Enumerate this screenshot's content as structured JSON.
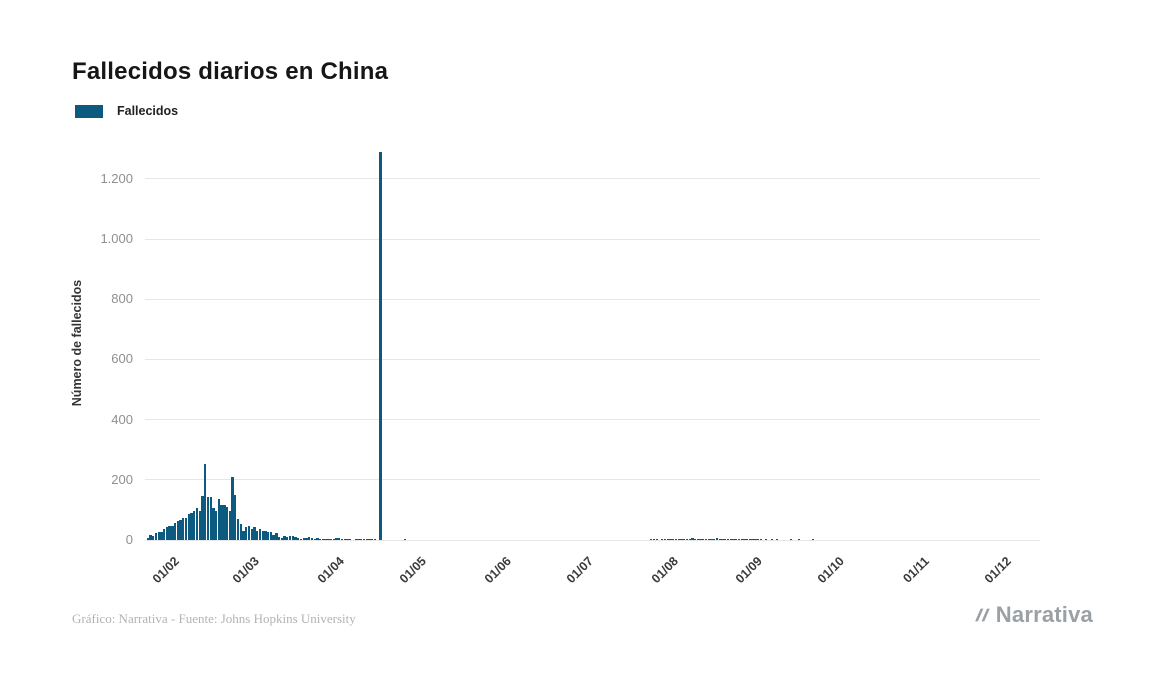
{
  "title": "Fallecidos diarios en China",
  "legend": {
    "label": "Fallecidos",
    "color": "#0d5a80"
  },
  "footer": {
    "credit": "Gráfico: Narrativa - Fuente: Johns Hopkins University"
  },
  "logo": {
    "text": "Narrativa"
  },
  "chart_data": {
    "type": "bar",
    "title": "Fallecidos diarios en China",
    "series_name": "Fallecidos",
    "xlabel": "",
    "ylabel": "Número de fallecidos",
    "bar_color": "#0d5a80",
    "grid": true,
    "legend_position": "top-left",
    "x_start": "2020-01-22",
    "x_end": "2020-12-14",
    "ylim": [
      0,
      1313
    ],
    "yticks": [
      [
        0,
        "0"
      ],
      [
        200,
        "200"
      ],
      [
        400,
        "400"
      ],
      [
        600,
        "600"
      ],
      [
        800,
        "800"
      ],
      [
        1000,
        "1.000"
      ],
      [
        1200,
        "1.200"
      ]
    ],
    "xticks": [
      [
        "2020-02-01",
        "01/02"
      ],
      [
        "2020-03-01",
        "01/03"
      ],
      [
        "2020-04-01",
        "01/04"
      ],
      [
        "2020-05-01",
        "01/05"
      ],
      [
        "2020-06-01",
        "01/06"
      ],
      [
        "2020-07-01",
        "01/07"
      ],
      [
        "2020-08-01",
        "01/08"
      ],
      [
        "2020-09-01",
        "01/09"
      ],
      [
        "2020-10-01",
        "01/10"
      ],
      [
        "2020-11-01",
        "01/11"
      ],
      [
        "2020-12-01",
        "01/12"
      ]
    ],
    "points": [
      [
        "2020-01-23",
        8
      ],
      [
        "2020-01-24",
        16
      ],
      [
        "2020-01-25",
        15
      ],
      [
        "2020-01-26",
        24
      ],
      [
        "2020-01-27",
        26
      ],
      [
        "2020-01-28",
        26
      ],
      [
        "2020-01-29",
        38
      ],
      [
        "2020-01-30",
        43
      ],
      [
        "2020-01-31",
        46
      ],
      [
        "2020-02-01",
        45
      ],
      [
        "2020-02-02",
        58
      ],
      [
        "2020-02-03",
        64
      ],
      [
        "2020-02-04",
        66
      ],
      [
        "2020-02-05",
        73
      ],
      [
        "2020-02-06",
        73
      ],
      [
        "2020-02-07",
        86
      ],
      [
        "2020-02-08",
        89
      ],
      [
        "2020-02-09",
        97
      ],
      [
        "2020-02-10",
        108
      ],
      [
        "2020-02-11",
        97
      ],
      [
        "2020-02-12",
        146
      ],
      [
        "2020-02-13",
        254
      ],
      [
        "2020-02-14",
        143
      ],
      [
        "2020-02-15",
        142
      ],
      [
        "2020-02-16",
        105
      ],
      [
        "2020-02-17",
        98
      ],
      [
        "2020-02-18",
        136
      ],
      [
        "2020-02-19",
        115
      ],
      [
        "2020-02-20",
        118
      ],
      [
        "2020-02-21",
        109
      ],
      [
        "2020-02-22",
        97
      ],
      [
        "2020-02-23",
        210
      ],
      [
        "2020-02-24",
        150
      ],
      [
        "2020-02-25",
        71
      ],
      [
        "2020-02-26",
        52
      ],
      [
        "2020-02-27",
        29
      ],
      [
        "2020-02-28",
        44
      ],
      [
        "2020-02-29",
        47
      ],
      [
        "2020-03-01",
        35
      ],
      [
        "2020-03-02",
        42
      ],
      [
        "2020-03-03",
        31
      ],
      [
        "2020-03-04",
        38
      ],
      [
        "2020-03-05",
        31
      ],
      [
        "2020-03-06",
        30
      ],
      [
        "2020-03-07",
        28
      ],
      [
        "2020-03-08",
        27
      ],
      [
        "2020-03-09",
        17
      ],
      [
        "2020-03-10",
        22
      ],
      [
        "2020-03-11",
        11
      ],
      [
        "2020-03-12",
        7
      ],
      [
        "2020-03-13",
        13
      ],
      [
        "2020-03-14",
        11
      ],
      [
        "2020-03-15",
        13
      ],
      [
        "2020-03-16",
        12
      ],
      [
        "2020-03-17",
        11
      ],
      [
        "2020-03-18",
        8
      ],
      [
        "2020-03-19",
        3
      ],
      [
        "2020-03-20",
        7
      ],
      [
        "2020-03-21",
        6
      ],
      [
        "2020-03-22",
        9
      ],
      [
        "2020-03-23",
        7
      ],
      [
        "2020-03-24",
        4
      ],
      [
        "2020-03-25",
        6
      ],
      [
        "2020-03-26",
        5
      ],
      [
        "2020-03-27",
        5
      ],
      [
        "2020-03-28",
        3
      ],
      [
        "2020-03-29",
        5
      ],
      [
        "2020-03-30",
        4
      ],
      [
        "2020-03-31",
        1
      ],
      [
        "2020-04-01",
        7
      ],
      [
        "2020-04-02",
        6
      ],
      [
        "2020-04-03",
        4
      ],
      [
        "2020-04-04",
        3
      ],
      [
        "2020-04-05",
        4
      ],
      [
        "2020-04-06",
        2
      ],
      [
        "2020-04-08",
        2
      ],
      [
        "2020-04-09",
        1
      ],
      [
        "2020-04-10",
        3
      ],
      [
        "2020-04-11",
        2
      ],
      [
        "2020-04-12",
        1
      ],
      [
        "2020-04-13",
        1
      ],
      [
        "2020-04-14",
        1
      ],
      [
        "2020-04-15",
        1
      ],
      [
        "2020-04-17",
        1290
      ],
      [
        "2020-04-26",
        1
      ],
      [
        "2020-07-25",
        1
      ],
      [
        "2020-07-26",
        1
      ],
      [
        "2020-07-27",
        2
      ],
      [
        "2020-07-29",
        2
      ],
      [
        "2020-07-30",
        3
      ],
      [
        "2020-07-31",
        3
      ],
      [
        "2020-08-01",
        2
      ],
      [
        "2020-08-02",
        3
      ],
      [
        "2020-08-03",
        3
      ],
      [
        "2020-08-04",
        4
      ],
      [
        "2020-08-05",
        5
      ],
      [
        "2020-08-06",
        3
      ],
      [
        "2020-08-07",
        5
      ],
      [
        "2020-08-08",
        4
      ],
      [
        "2020-08-09",
        6
      ],
      [
        "2020-08-10",
        3
      ],
      [
        "2020-08-11",
        4
      ],
      [
        "2020-08-12",
        5
      ],
      [
        "2020-08-13",
        3
      ],
      [
        "2020-08-14",
        5
      ],
      [
        "2020-08-15",
        4
      ],
      [
        "2020-08-16",
        3
      ],
      [
        "2020-08-17",
        4
      ],
      [
        "2020-08-18",
        7
      ],
      [
        "2020-08-19",
        5
      ],
      [
        "2020-08-20",
        3
      ],
      [
        "2020-08-21",
        3
      ],
      [
        "2020-08-22",
        2
      ],
      [
        "2020-08-23",
        3
      ],
      [
        "2020-08-24",
        2
      ],
      [
        "2020-08-25",
        2
      ],
      [
        "2020-08-26",
        2
      ],
      [
        "2020-08-27",
        1
      ],
      [
        "2020-08-28",
        2
      ],
      [
        "2020-08-29",
        1
      ],
      [
        "2020-08-30",
        1
      ],
      [
        "2020-08-31",
        2
      ],
      [
        "2020-09-01",
        1
      ],
      [
        "2020-09-02",
        2
      ],
      [
        "2020-09-03",
        1
      ],
      [
        "2020-09-05",
        1
      ],
      [
        "2020-09-07",
        1
      ],
      [
        "2020-09-09",
        1
      ],
      [
        "2020-09-14",
        1
      ],
      [
        "2020-09-17",
        1
      ],
      [
        "2020-09-22",
        1
      ]
    ]
  }
}
